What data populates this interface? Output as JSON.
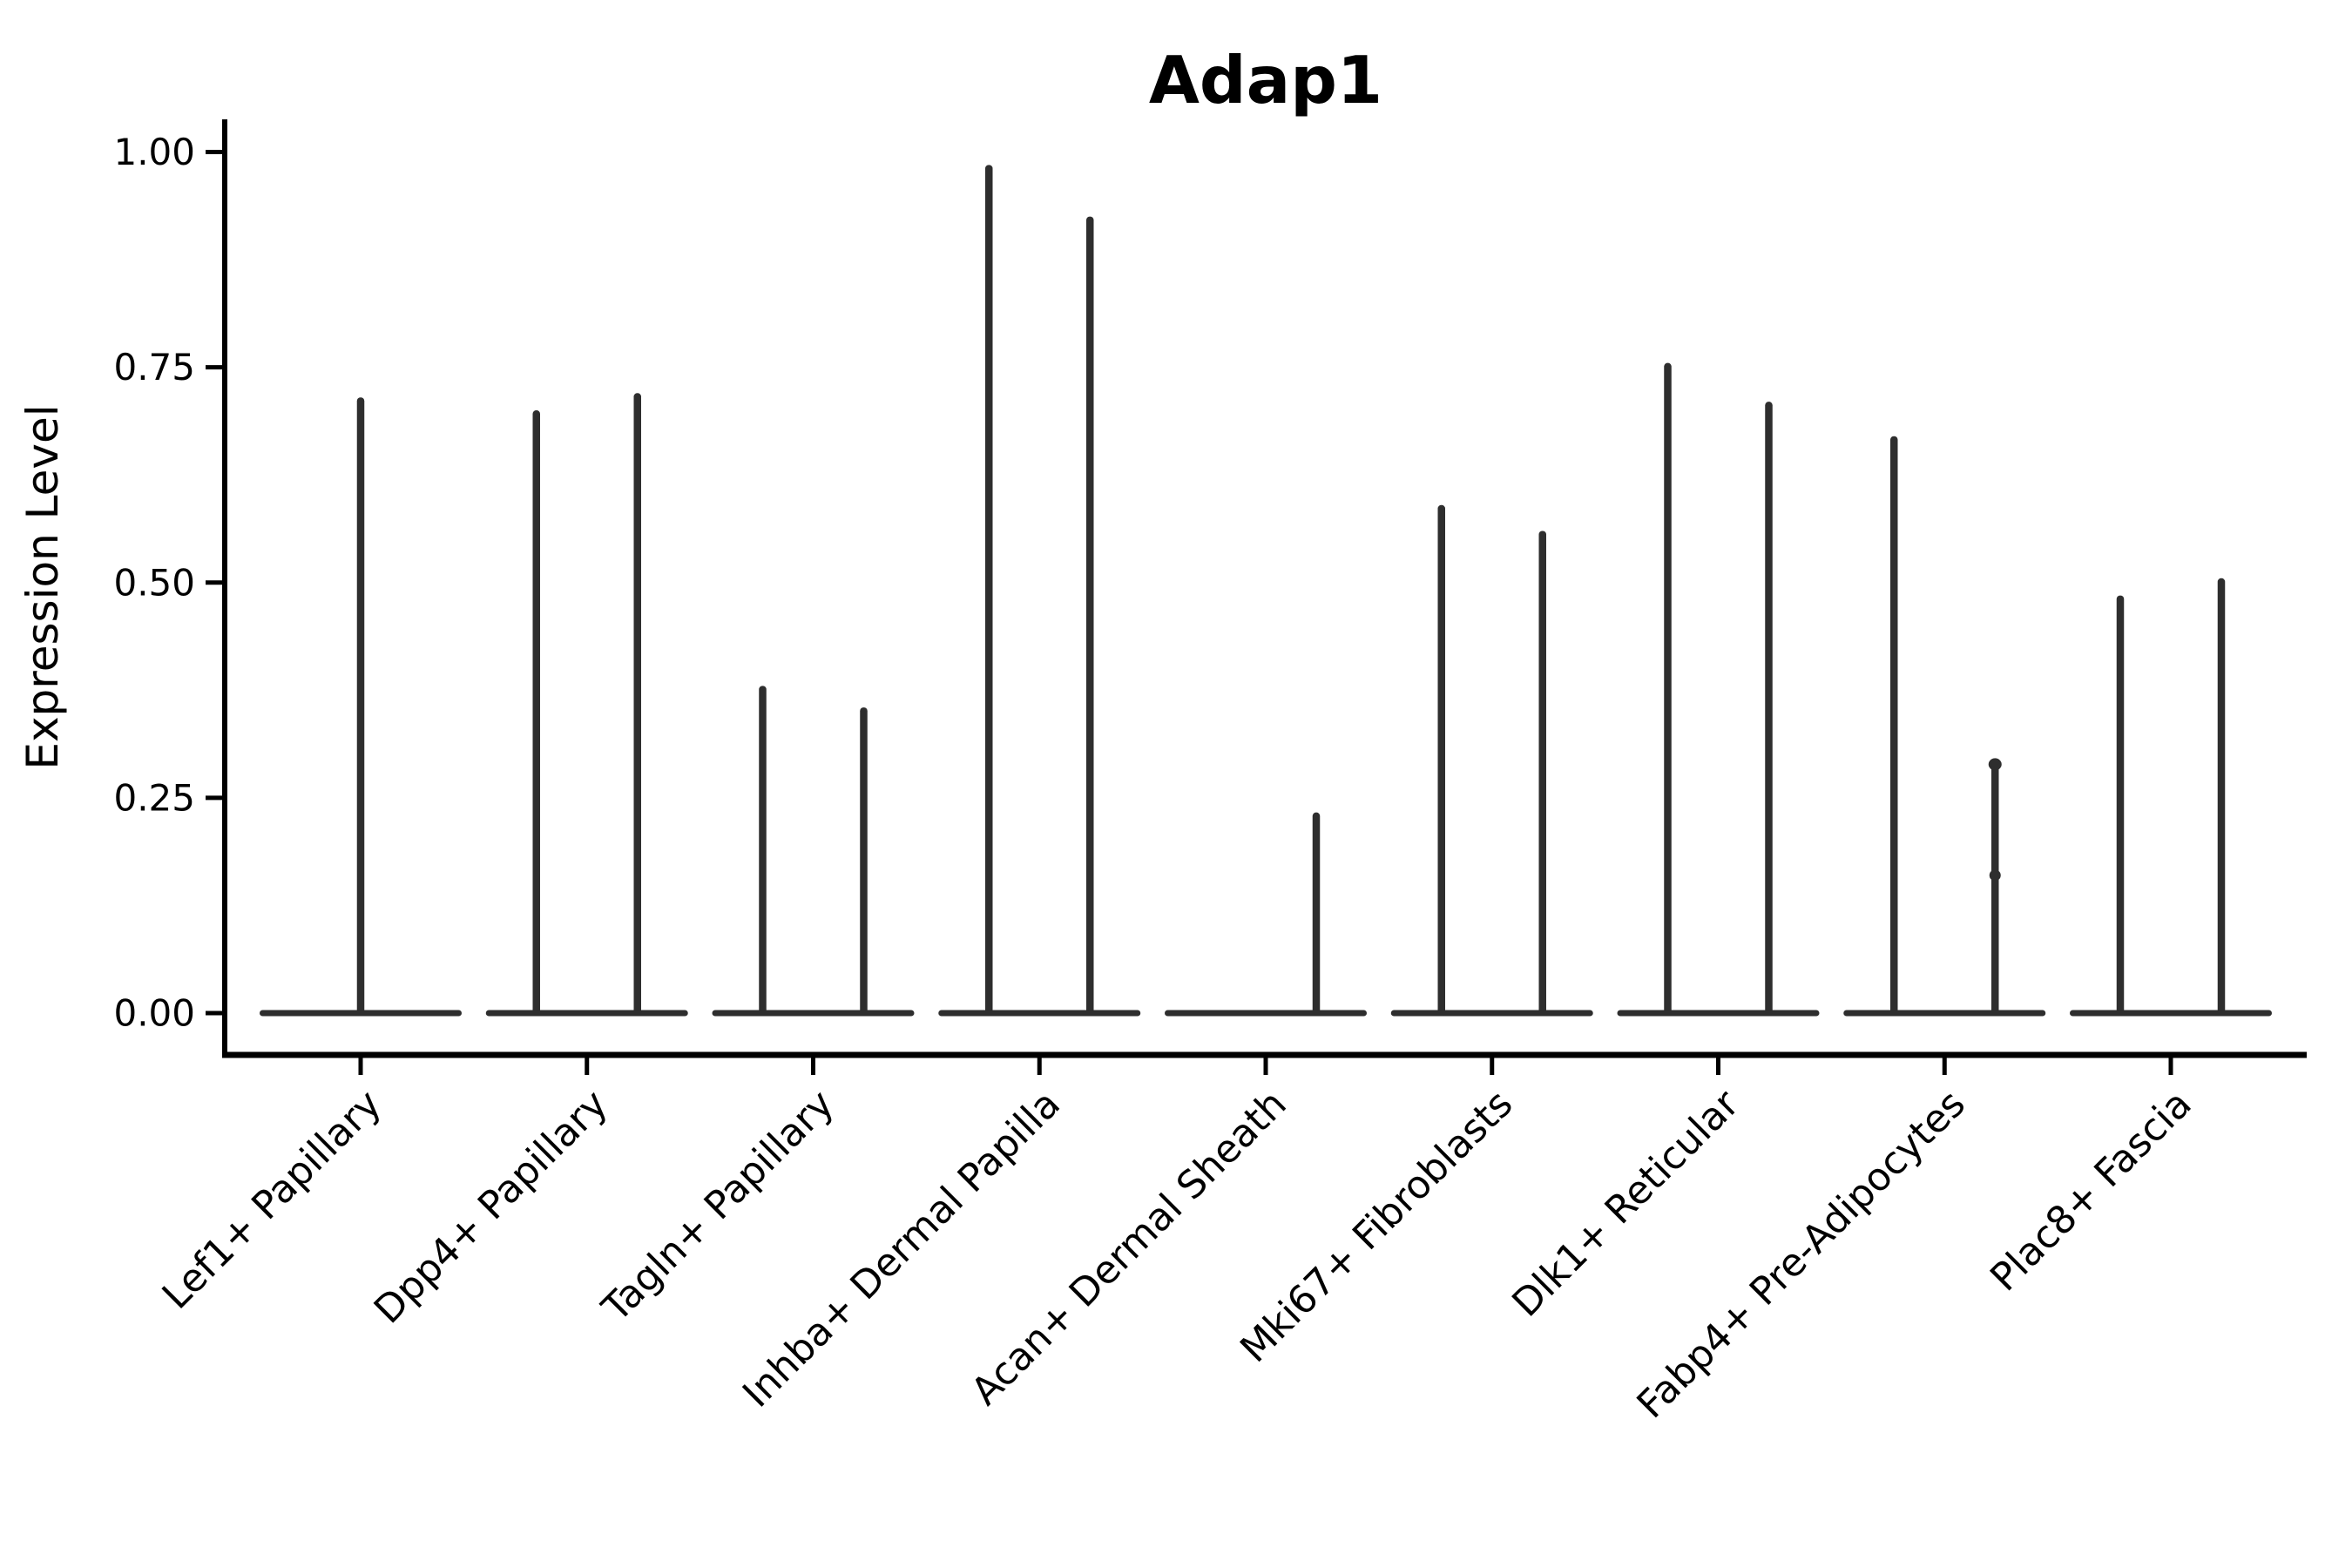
{
  "figure": {
    "title": "Adap1",
    "ylabel": "Expression Level",
    "background_color": "#ffffff",
    "axis_color": "#000000",
    "violin_color": "#2e2e2e"
  },
  "chart_data": {
    "type": "violin",
    "title": "Adap1",
    "xlabel": "",
    "ylabel": "Expression Level",
    "ylim": [
      -0.05,
      1.04
    ],
    "yticks": [
      0.0,
      0.25,
      0.5,
      0.75,
      1.0
    ],
    "ytick_labels": [
      "0.00",
      "0.25",
      "0.50",
      "0.75",
      "1.00"
    ],
    "grid": false,
    "legend": null,
    "x_tick_rotation_deg": 45,
    "baseline_value": 0.0,
    "categories": [
      "Lef1+ Papillary",
      "Dpp4+ Papillary",
      "Tagln+ Papillary",
      "Inhba+ Dermal Papilla",
      "Acan+ Dermal Sheath",
      "Mki67+ Fibroblasts",
      "Dlk1+ Reticular",
      "Fabp4+ Pre-Adipocytes",
      "Plac8+ Fascia"
    ],
    "series": [
      {
        "category": "Lef1+ Papillary",
        "violins": [
          {
            "position": "center",
            "max": 0.715
          }
        ]
      },
      {
        "category": "Dpp4+ Papillary",
        "violins": [
          {
            "position": "left",
            "max": 0.7
          },
          {
            "position": "right",
            "max": 0.72
          }
        ]
      },
      {
        "category": "Tagln+ Papillary",
        "violins": [
          {
            "position": "left",
            "max": 0.38
          },
          {
            "position": "right",
            "max": 0.355
          }
        ]
      },
      {
        "category": "Inhba+ Dermal Papilla",
        "violins": [
          {
            "position": "left",
            "max": 0.985
          },
          {
            "position": "right",
            "max": 0.925
          }
        ]
      },
      {
        "category": "Acan+ Dermal Sheath",
        "violins": [
          {
            "position": "right",
            "max": 0.233
          }
        ]
      },
      {
        "category": "Mki67+ Fibroblasts",
        "violins": [
          {
            "position": "left",
            "max": 0.59
          },
          {
            "position": "right",
            "max": 0.56
          }
        ]
      },
      {
        "category": "Dlk1+ Reticular",
        "violins": [
          {
            "position": "left",
            "max": 0.755
          },
          {
            "position": "right",
            "max": 0.71
          }
        ]
      },
      {
        "category": "Fabp4+ Pre-Adipocytes",
        "violins": [
          {
            "position": "left",
            "max": 0.67
          },
          {
            "position": "right",
            "max": 0.295,
            "tip_knob": true,
            "bump_at": 0.16
          }
        ]
      },
      {
        "category": "Plac8+ Fascia",
        "violins": [
          {
            "position": "left",
            "max": 0.485
          },
          {
            "position": "right",
            "max": 0.505
          }
        ]
      }
    ]
  }
}
